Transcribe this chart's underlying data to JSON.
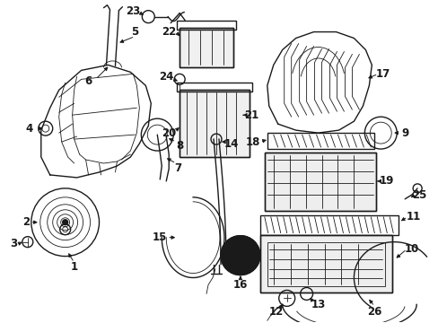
{
  "background_color": "#ffffff",
  "line_color": "#1a1a1a",
  "fig_width": 4.89,
  "fig_height": 3.6,
  "dpi": 100,
  "label_fontsize": 8.5,
  "label_fontsize_sm": 7.5
}
